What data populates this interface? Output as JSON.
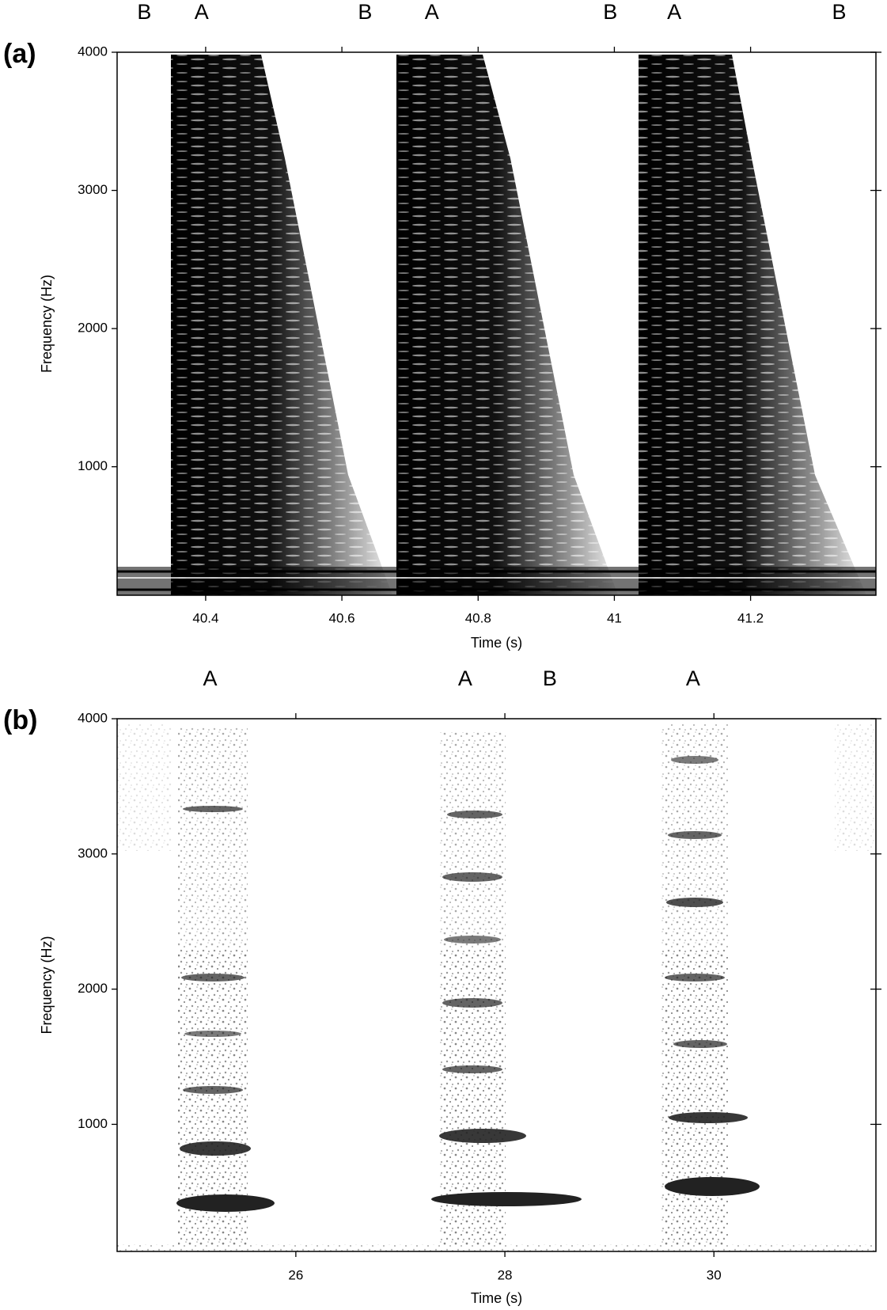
{
  "chart_data": [
    {
      "type": "spectrogram",
      "panel_label": "(a)",
      "xlabel": "Time (s)",
      "ylabel": "Frequency (Hz)",
      "xlim": [
        40.27,
        41.384
      ],
      "ylim": [
        70,
        4000
      ],
      "xticks": [
        40.4,
        40.6,
        40.8,
        41,
        41.2
      ],
      "yticks": [
        1000,
        2000,
        3000,
        4000
      ],
      "annotations": [
        {
          "text": "B",
          "x": 40.31
        },
        {
          "text": "A",
          "x": 40.394
        },
        {
          "text": "B",
          "x": 40.634
        },
        {
          "text": "A",
          "x": 40.732
        },
        {
          "text": "B",
          "x": 40.994
        },
        {
          "text": "A",
          "x": 41.088
        },
        {
          "text": "B",
          "x": 41.33
        }
      ]
    },
    {
      "type": "spectrogram",
      "panel_label": "(b)",
      "xlabel": "Time (s)",
      "ylabel": "Frequency (Hz)",
      "xlim": [
        24.29,
        31.55
      ],
      "ylim": [
        60,
        4000
      ],
      "xticks": [
        26,
        28,
        30
      ],
      "yticks": [
        1000,
        2000,
        3000,
        4000
      ],
      "annotations": [
        {
          "text": "A",
          "x": 25.18
        },
        {
          "text": "A",
          "x": 27.62
        },
        {
          "text": "B",
          "x": 28.43
        },
        {
          "text": "A",
          "x": 29.8
        }
      ]
    }
  ]
}
